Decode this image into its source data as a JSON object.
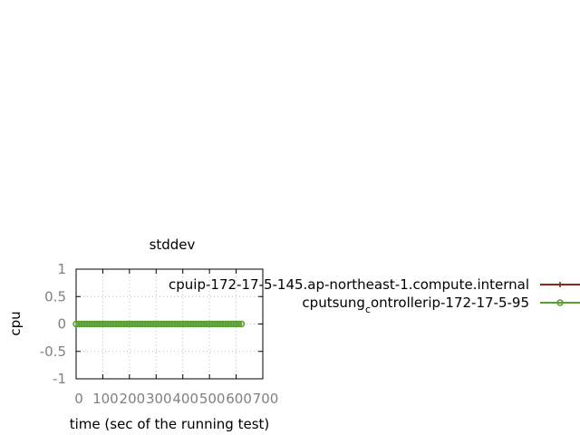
{
  "chart_data": {
    "type": "line",
    "title": "stddev",
    "xlabel": "time (sec of the running test)",
    "ylabel": "cpu",
    "xlim": [
      0,
      700
    ],
    "ylim": [
      -1,
      1
    ],
    "xticks": [
      0,
      100,
      200,
      300,
      400,
      500,
      600,
      700
    ],
    "yticks": [
      1,
      0.5,
      0,
      -0.5,
      -1
    ],
    "grid": true,
    "legend_position": "right",
    "series": [
      {
        "legend_parts": [
          "cpu",
          "ip-172-17-5-145.ap-northeast-1.compute.internal",
          "",
          "",
          ""
        ],
        "color": "#8b2a1c",
        "marker": "plus",
        "x": [],
        "y": []
      },
      {
        "legend_parts": [
          "cpu",
          "tsung",
          "c",
          "ontroller",
          "ip-172-17-5-95"
        ],
        "color": "#5a9e34",
        "marker": "circle",
        "x": [
          0,
          10,
          20,
          30,
          40,
          50,
          60,
          70,
          80,
          90,
          100,
          110,
          120,
          130,
          140,
          150,
          160,
          170,
          180,
          190,
          200,
          210,
          220,
          230,
          240,
          250,
          260,
          270,
          280,
          290,
          300,
          310,
          320,
          330,
          340,
          350,
          360,
          370,
          380,
          390,
          400,
          410,
          420,
          430,
          440,
          450,
          460,
          470,
          480,
          490,
          500,
          510,
          520,
          530,
          540,
          550,
          560,
          570,
          580,
          590,
          600,
          610,
          620
        ],
        "y": [
          0,
          0,
          0,
          0,
          0,
          0,
          0,
          0,
          0,
          0,
          0,
          0,
          0,
          0,
          0,
          0,
          0,
          0,
          0,
          0,
          0,
          0,
          0,
          0,
          0,
          0,
          0,
          0,
          0,
          0,
          0,
          0,
          0,
          0,
          0,
          0,
          0,
          0,
          0,
          0,
          0,
          0,
          0,
          0,
          0,
          0,
          0,
          0,
          0,
          0,
          0,
          0,
          0,
          0,
          0,
          0,
          0,
          0,
          0,
          0,
          0,
          0,
          0
        ]
      }
    ]
  }
}
